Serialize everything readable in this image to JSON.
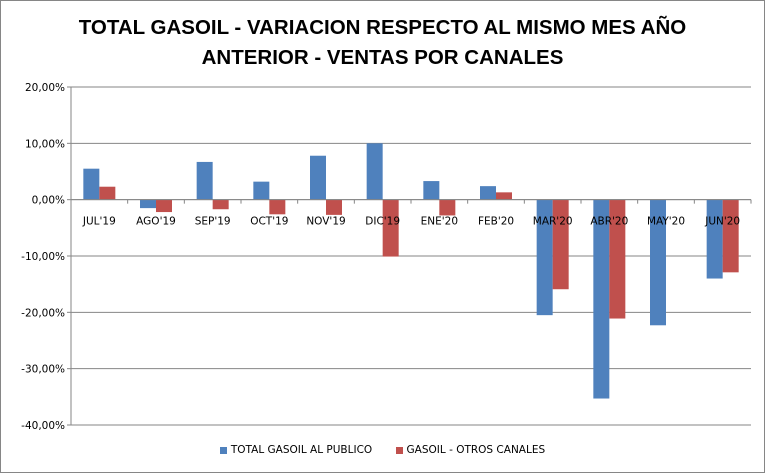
{
  "chart_data": {
    "type": "bar",
    "title_lines": [
      "TOTAL GASOIL - VARIACION RESPECTO AL MISMO MES AÑO",
      "ANTERIOR - VENTAS POR CANALES"
    ],
    "categories": [
      "JUL'19",
      "AGO'19",
      "SEP'19",
      "OCT'19",
      "NOV'19",
      "DIC'19",
      "ENE'20",
      "FEB'20",
      "MAR'20",
      "ABR'20",
      "MAY'20",
      "JUN'20"
    ],
    "series": [
      {
        "name": "TOTAL GASOIL AL PUBLICO",
        "color": "#4F81BD",
        "values": [
          5.5,
          -1.5,
          6.7,
          3.2,
          7.8,
          10.0,
          3.3,
          2.4,
          -20.5,
          -35.3,
          -22.3,
          -14.0
        ]
      },
      {
        "name": "GASOIL - OTROS CANALES",
        "color": "#C0504D",
        "values": [
          2.3,
          -2.2,
          -1.7,
          -2.6,
          -2.7,
          -10.1,
          -2.8,
          1.3,
          -15.9,
          -21.1,
          0,
          -12.9
        ]
      }
    ],
    "yticks": [
      "20,00%",
      "10,00%",
      "0,00%",
      "-10,00%",
      "-20,00%",
      "-30,00%",
      "-40,00%"
    ],
    "ylim": [
      -40,
      20
    ],
    "ylabel": "",
    "xlabel": "",
    "grid": true,
    "legend_position": "bottom"
  }
}
